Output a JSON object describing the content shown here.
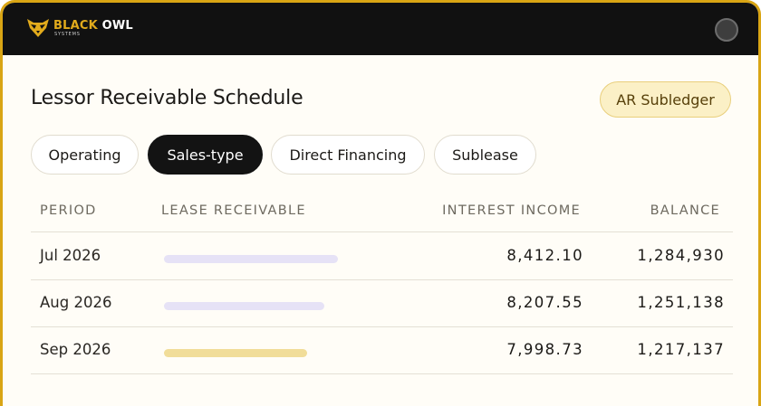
{
  "app": {
    "logo_name_left": "BLACK",
    "logo_name_right": "OWL",
    "logo_sub": "SYSTEMS"
  },
  "page": {
    "title": "Lessor Receivable Schedule",
    "badge": "AR Subledger"
  },
  "tabs": [
    {
      "label": "Operating",
      "active": false
    },
    {
      "label": "Sales-type",
      "active": true
    },
    {
      "label": "Direct Financing",
      "active": false
    },
    {
      "label": "Sublease",
      "active": false
    }
  ],
  "table": {
    "headers": {
      "period": "PERIOD",
      "lease_receivable": "LEASE RECEIVABLE",
      "interest_income": "INTEREST INCOME",
      "balance": "BALANCE"
    },
    "rows": [
      {
        "period": "Jul 2026",
        "receivable_level": 0.62,
        "bar_color": "#e6e2f6",
        "interest_income": "8,412.10",
        "balance": "1,284,930"
      },
      {
        "period": "Aug 2026",
        "receivable_level": 0.57,
        "bar_color": "#e6e2f6",
        "interest_income": "8,207.55",
        "balance": "1,251,138"
      },
      {
        "period": "Sep 2026",
        "receivable_level": 0.51,
        "bar_color": "#f1dd99",
        "interest_income": "7,998.73",
        "balance": "1,217,137"
      }
    ]
  },
  "colors": {
    "accent": "#d9a514",
    "topbar": "#111111",
    "active_tab": "#131313"
  },
  "icons": {
    "logo": "owl-logo-icon",
    "profile": "profile-avatar-icon"
  }
}
